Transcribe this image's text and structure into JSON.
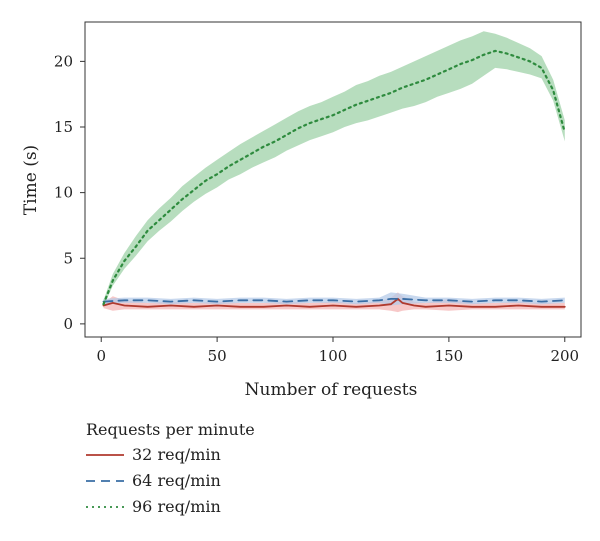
{
  "chart_data": {
    "type": "line",
    "xlabel": "Number of requests",
    "ylabel": "Time (s)",
    "xlim": [
      -7,
      207
    ],
    "ylim": [
      -1,
      23
    ],
    "xticks": [
      0,
      50,
      100,
      150,
      200
    ],
    "yticks": [
      0,
      5,
      10,
      15,
      20
    ],
    "grid": false,
    "legend": {
      "title": "Requests per minute",
      "placement": "below"
    },
    "series": [
      {
        "name": "32 req/min",
        "color": "#b03a2e",
        "band_color": "#f4b6b6",
        "dash": "solid",
        "x": [
          1,
          5,
          10,
          20,
          30,
          40,
          50,
          60,
          70,
          80,
          90,
          100,
          110,
          120,
          125,
          128,
          130,
          135,
          140,
          150,
          160,
          170,
          180,
          190,
          200
        ],
        "y": [
          1.4,
          1.6,
          1.4,
          1.3,
          1.4,
          1.3,
          1.4,
          1.3,
          1.3,
          1.4,
          1.3,
          1.4,
          1.3,
          1.4,
          1.5,
          1.9,
          1.6,
          1.4,
          1.3,
          1.4,
          1.3,
          1.3,
          1.4,
          1.3,
          1.3
        ],
        "lower": [
          1.2,
          1.0,
          1.1,
          1.1,
          1.1,
          1.1,
          1.1,
          1.1,
          1.1,
          1.1,
          1.1,
          1.1,
          1.1,
          1.1,
          1.0,
          0.9,
          1.0,
          1.1,
          1.1,
          1.0,
          1.1,
          1.1,
          1.1,
          1.1,
          1.1
        ],
        "upper": [
          1.6,
          2.1,
          1.8,
          1.6,
          1.7,
          1.6,
          1.7,
          1.6,
          1.6,
          1.7,
          1.6,
          1.7,
          1.6,
          1.7,
          2.0,
          2.4,
          2.1,
          1.7,
          1.6,
          1.9,
          1.6,
          1.6,
          1.7,
          1.6,
          1.6
        ]
      },
      {
        "name": "64 req/min",
        "color": "#3a6ea5",
        "band_color": "#b6cbe8",
        "dash": "dashed",
        "x": [
          1,
          10,
          20,
          30,
          40,
          50,
          60,
          70,
          80,
          90,
          100,
          110,
          120,
          125,
          130,
          140,
          150,
          160,
          170,
          180,
          190,
          200
        ],
        "y": [
          1.7,
          1.8,
          1.8,
          1.7,
          1.8,
          1.7,
          1.8,
          1.8,
          1.7,
          1.8,
          1.8,
          1.7,
          1.8,
          1.9,
          1.9,
          1.8,
          1.8,
          1.7,
          1.8,
          1.8,
          1.7,
          1.8
        ],
        "lower": [
          1.5,
          1.6,
          1.6,
          1.5,
          1.6,
          1.5,
          1.6,
          1.6,
          1.5,
          1.6,
          1.6,
          1.5,
          1.6,
          1.4,
          1.5,
          1.6,
          1.6,
          1.5,
          1.6,
          1.6,
          1.5,
          1.6
        ],
        "upper": [
          1.9,
          2.0,
          2.0,
          1.9,
          2.0,
          1.9,
          2.0,
          2.0,
          1.9,
          2.0,
          2.0,
          1.9,
          2.0,
          2.4,
          2.3,
          2.0,
          2.0,
          1.9,
          2.0,
          2.0,
          1.9,
          2.0
        ]
      },
      {
        "name": "96 req/min",
        "color": "#2e8b3e",
        "band_color": "#9fd1a8",
        "dash": "dotted",
        "x": [
          1,
          5,
          10,
          15,
          20,
          25,
          30,
          35,
          40,
          45,
          50,
          55,
          60,
          65,
          70,
          75,
          80,
          85,
          90,
          95,
          100,
          105,
          110,
          115,
          120,
          125,
          130,
          135,
          140,
          145,
          150,
          155,
          160,
          165,
          170,
          175,
          180,
          185,
          190,
          195,
          200
        ],
        "y": [
          1.5,
          3.3,
          4.8,
          5.9,
          7.1,
          7.9,
          8.7,
          9.5,
          10.2,
          10.9,
          11.4,
          12.0,
          12.5,
          13.0,
          13.5,
          13.9,
          14.4,
          14.9,
          15.3,
          15.6,
          15.9,
          16.3,
          16.7,
          17.0,
          17.3,
          17.6,
          18.0,
          18.3,
          18.6,
          19.0,
          19.4,
          19.8,
          20.1,
          20.5,
          20.8,
          20.6,
          20.3,
          20.0,
          19.5,
          17.8,
          14.6
        ],
        "lower": [
          1.3,
          2.9,
          4.2,
          5.2,
          6.3,
          7.1,
          7.8,
          8.6,
          9.3,
          9.9,
          10.4,
          11.0,
          11.4,
          11.9,
          12.3,
          12.7,
          13.2,
          13.6,
          14.0,
          14.3,
          14.6,
          15.0,
          15.3,
          15.5,
          15.8,
          16.1,
          16.4,
          16.6,
          16.9,
          17.3,
          17.6,
          17.9,
          18.3,
          18.9,
          19.5,
          19.4,
          19.2,
          19.0,
          18.7,
          17.0,
          13.9
        ],
        "upper": [
          1.8,
          3.8,
          5.4,
          6.7,
          7.9,
          8.8,
          9.6,
          10.5,
          11.2,
          11.9,
          12.5,
          13.1,
          13.7,
          14.2,
          14.7,
          15.2,
          15.7,
          16.2,
          16.6,
          16.9,
          17.3,
          17.7,
          18.2,
          18.5,
          18.9,
          19.2,
          19.6,
          20.0,
          20.4,
          20.8,
          21.2,
          21.6,
          21.9,
          22.3,
          22.1,
          21.8,
          21.4,
          21.0,
          20.4,
          18.6,
          15.5
        ]
      }
    ]
  }
}
